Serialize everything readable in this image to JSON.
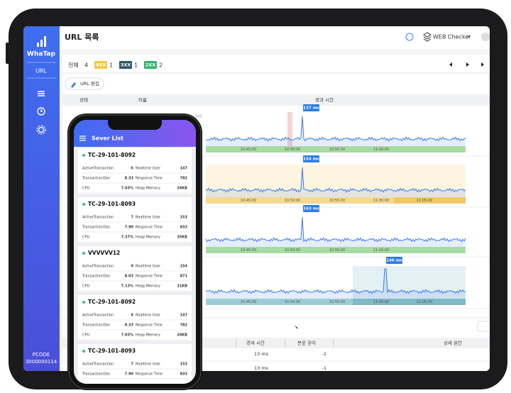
{
  "sidebar": {
    "logo": "WhaTap",
    "menu": "URL",
    "pcode_label": "PCODE",
    "pcode": "3000000114"
  },
  "header": {
    "title": "URL 목록",
    "product": "WEB Checker"
  },
  "filters": [
    {
      "label": "전체",
      "count": 4
    },
    {
      "label": "4XX",
      "count": 1
    },
    {
      "label": "3XX",
      "count": 1
    },
    {
      "label": "2XX",
      "count": 2
    }
  ],
  "edit_button": "URL 편집",
  "columns": [
    "상태",
    "이름",
    "경과 시간"
  ],
  "charts": [
    {
      "axis_top": "160",
      "peak": "137 ms",
      "times": [
        "10:45:00",
        "10:50:00",
        "10:55:00",
        "11:00:00"
      ]
    },
    {
      "peak": "154 ms",
      "times": [
        "10:45:00",
        "10:50:00",
        "10:55:00",
        "11:00:00",
        "11:05:00"
      ]
    },
    {
      "peak": "163 ms",
      "times": [
        "10:45:00",
        "10:50:00",
        "10:55:00",
        "11:00:00"
      ]
    },
    {
      "peak": "146 ms",
      "times": [
        "10:45:00",
        "10:50:00",
        "10:55:00",
        "11:00:00",
        "11:05:00"
      ]
    }
  ],
  "detail_table": {
    "columns": [
      "경과 시간",
      "본문 길이",
      "상세 원인"
    ],
    "rows": [
      [
        "13 ms",
        "-1"
      ],
      [
        "13 ms",
        "-1"
      ]
    ]
  },
  "phone": {
    "title": "Sever List",
    "servers": [
      {
        "name": "TC-29-101-8092",
        "metrics": [
          [
            "ActiveTransaction",
            "6",
            "Realtime User",
            "147"
          ],
          [
            "Transaction/Sec",
            "8.33",
            "Response Time",
            "782"
          ],
          [
            "CPU",
            "7.03%",
            "Heap Memory",
            "26KB"
          ]
        ]
      },
      {
        "name": "TC-29-101-8093",
        "metrics": [
          [
            "ActiveTransaction",
            "7",
            "Realtime User",
            "153"
          ],
          [
            "Transaction/Sec",
            "7.90",
            "Response Time",
            "833"
          ],
          [
            "CPU",
            "7.37%",
            "Heap Memory",
            "35KB"
          ]
        ]
      },
      {
        "name": "VVVVVV12",
        "metrics": [
          [
            "ActiveTransaction",
            "9",
            "Realtime User",
            "154"
          ],
          [
            "Transaction/Sec",
            "8.03",
            "Response Time",
            "871"
          ],
          [
            "CPU",
            "7.13%",
            "Heap Memory",
            "21KB"
          ]
        ]
      },
      {
        "name": "TC-29-101-8092",
        "metrics": [
          [
            "ActiveTransaction",
            "6",
            "Realtime User",
            "147"
          ],
          [
            "Transaction/Sec",
            "8.33",
            "Response Time",
            "782"
          ],
          [
            "CPU",
            "7.03%",
            "Heap Memory",
            "26KB"
          ]
        ]
      },
      {
        "name": "TC-29-101-8093",
        "metrics": [
          [
            "ActiveTransaction",
            "7",
            "Realtime User",
            "153"
          ],
          [
            "Transaction/Sec",
            "7.90",
            "Response Time",
            "833"
          ]
        ]
      }
    ]
  }
}
